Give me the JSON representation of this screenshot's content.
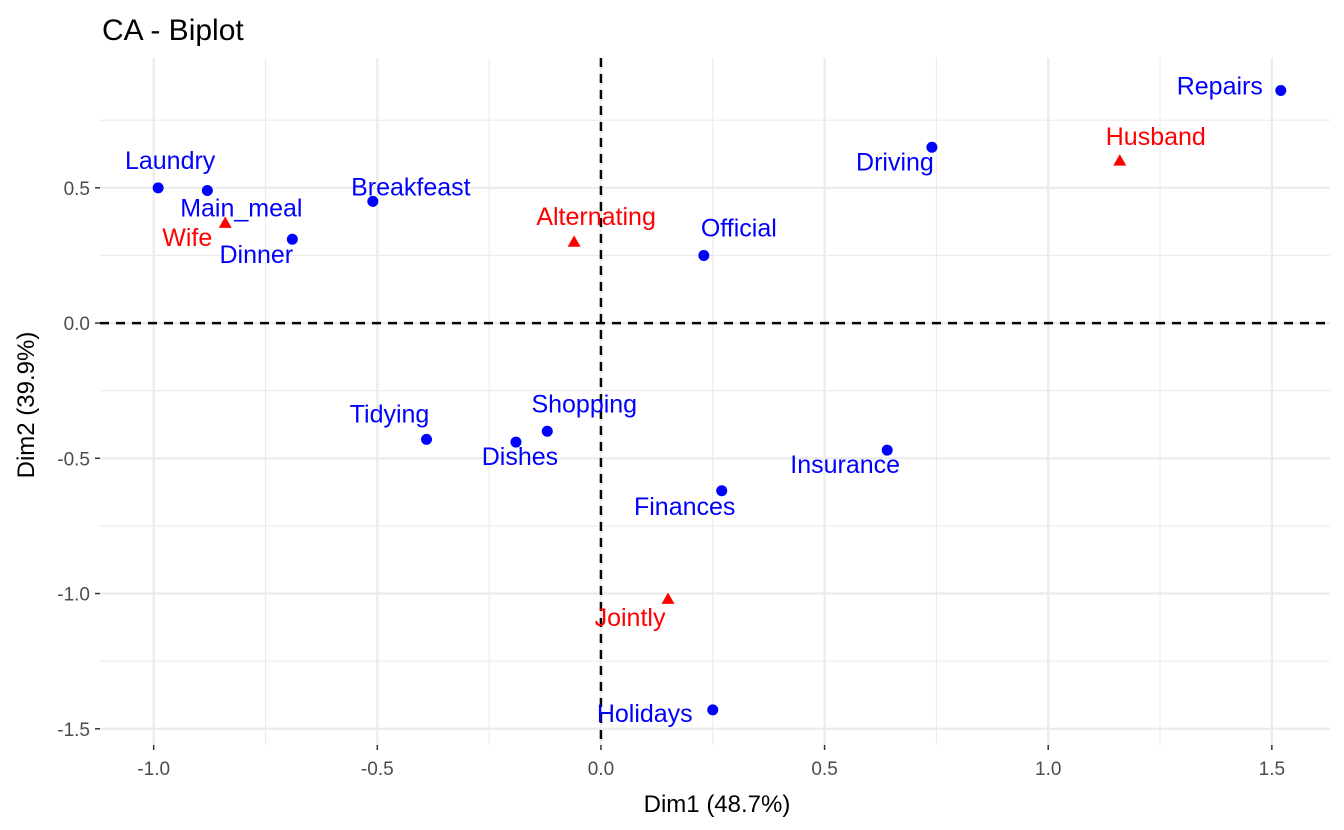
{
  "chart_data": {
    "type": "scatter",
    "title": "CA - Biplot",
    "xlabel": "Dim1 (48.7%)",
    "ylabel": "Dim2 (39.9%)",
    "xlim": [
      -1.12,
      1.63
    ],
    "ylim": [
      -1.56,
      0.98
    ],
    "x_ticks": [
      -1.0,
      -0.5,
      0.0,
      0.5,
      1.0,
      1.5
    ],
    "x_tick_labels": [
      "-1.0",
      "-0.5",
      "0.0",
      "0.5",
      "1.0",
      "1.5"
    ],
    "y_ticks": [
      -1.5,
      -1.0,
      -0.5,
      0.0,
      0.5
    ],
    "y_tick_labels": [
      "-1.5",
      "-1.0",
      "-0.5",
      "0.0",
      "0.5"
    ],
    "grid": true,
    "reference_lines": {
      "x": 0,
      "y": 0,
      "style": "dashed"
    },
    "series": [
      {
        "marker": "circle",
        "color": "#0000FF",
        "points": [
          {
            "label": "Laundry",
            "x": -0.99,
            "y": 0.5
          },
          {
            "label": "Main_meal",
            "x": -0.88,
            "y": 0.49
          },
          {
            "label": "Dinner",
            "x": -0.69,
            "y": 0.31
          },
          {
            "label": "Breakfeast",
            "x": -0.51,
            "y": 0.45
          },
          {
            "label": "Tidying",
            "x": -0.39,
            "y": -0.43
          },
          {
            "label": "Dishes",
            "x": -0.19,
            "y": -0.44
          },
          {
            "label": "Shopping",
            "x": -0.12,
            "y": -0.4
          },
          {
            "label": "Official",
            "x": 0.23,
            "y": 0.25
          },
          {
            "label": "Driving",
            "x": 0.74,
            "y": 0.65
          },
          {
            "label": "Finances",
            "x": 0.27,
            "y": -0.62
          },
          {
            "label": "Insurance",
            "x": 0.64,
            "y": -0.47
          },
          {
            "label": "Repairs",
            "x": 1.52,
            "y": 0.86
          },
          {
            "label": "Holidays",
            "x": 0.25,
            "y": -1.43
          }
        ]
      },
      {
        "marker": "triangle",
        "color": "#FF0000",
        "points": [
          {
            "label": "Wife",
            "x": -0.84,
            "y": 0.37
          },
          {
            "label": "Alternating",
            "x": -0.06,
            "y": 0.3
          },
          {
            "label": "Husband",
            "x": 1.16,
            "y": 0.6
          },
          {
            "label": "Jointly",
            "x": 0.15,
            "y": -1.02
          }
        ]
      }
    ]
  }
}
